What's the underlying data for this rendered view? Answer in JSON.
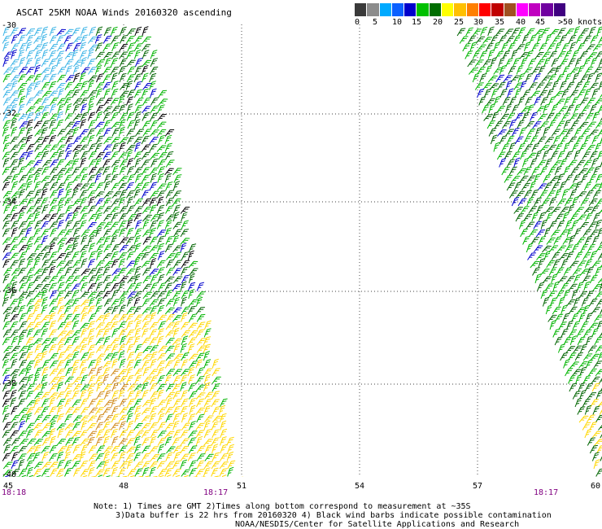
{
  "title": "ASCAT 25KM NOAA Winds 20160320 ascending",
  "colorbar": {
    "labels": [
      "0",
      "5",
      "10",
      "15",
      "20",
      "25",
      "30",
      "35",
      "40",
      "45",
      ">50 knots"
    ],
    "colors": [
      "#3a3a3a",
      "#8c8c8c",
      "#00aaff",
      "#0a60ff",
      "#0000cc",
      "#00c000",
      "#006e00",
      "#ffff00",
      "#ffc000",
      "#ff7f00",
      "#ff0000",
      "#c00000",
      "#a05020",
      "#ff00ff",
      "#c000c0",
      "#7000a0",
      "#400080"
    ]
  },
  "map": {
    "lat_labels": [
      "-30",
      "-32",
      "-34",
      "-36",
      "-38",
      "-40"
    ],
    "lon_labels": [
      "45",
      "48",
      "51",
      "54",
      "57",
      "60"
    ],
    "times": [
      "18:18",
      "18:17",
      "18:17"
    ],
    "barb_colors": {
      "light_blue": "#3cb4e6",
      "blue": "#0000cc",
      "green": "#00b400",
      "dark_green": "#006400",
      "yellow": "#ffd700",
      "orange": "#d08a1a",
      "black": "#000000"
    }
  },
  "notes": [
    "Note: 1) Times are GMT 2)Times along bottom correspond to measurement at ~35S",
    "3)Data buffer is 22 hrs from 20160320 4) Black wind barbs indicate possible contamination",
    "NOAA/NESDIS/Center for Satellite Applications and Research"
  ]
}
